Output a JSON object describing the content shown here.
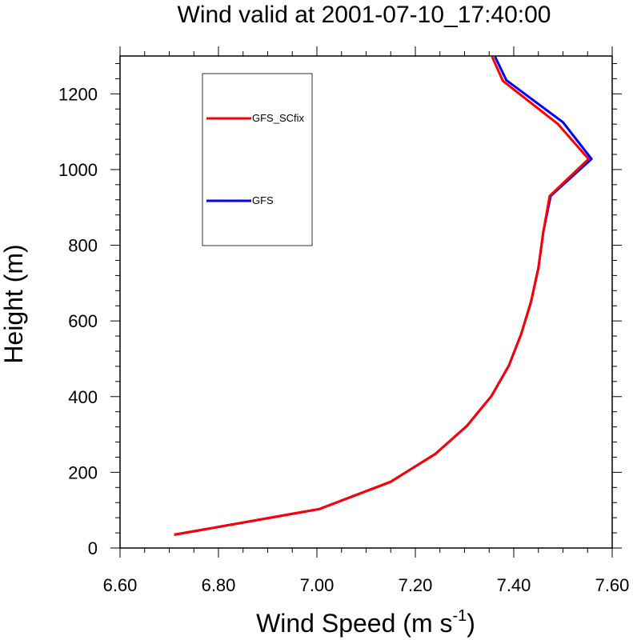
{
  "chart_data": {
    "type": "line",
    "title": "Wind valid at 2001-07-10_17:40:00",
    "xlabel_main": "Wind Speed (m s",
    "xlabel_sup": "-1",
    "xlabel_close": ")",
    "ylabel": "Height (m)",
    "xlim": [
      6.6,
      7.6
    ],
    "ylim": [
      0,
      1300
    ],
    "x_ticks": [
      6.6,
      6.8,
      7.0,
      7.2,
      7.4,
      7.6
    ],
    "x_tick_labels": [
      "6.60",
      "6.80",
      "7.00",
      "7.20",
      "7.40",
      "7.60"
    ],
    "y_ticks": [
      0,
      200,
      400,
      600,
      800,
      1000,
      1200
    ],
    "y_tick_labels": [
      "0",
      "200",
      "400",
      "600",
      "800",
      "1000",
      "1200"
    ],
    "legend_placement": "top-left",
    "series": [
      {
        "name": "GFS",
        "color": "#0000ff",
        "points": [
          [
            6.71,
            35
          ],
          [
            7.005,
            103
          ],
          [
            7.15,
            175
          ],
          [
            7.24,
            248
          ],
          [
            7.305,
            323
          ],
          [
            7.355,
            402
          ],
          [
            7.39,
            482
          ],
          [
            7.415,
            565
          ],
          [
            7.435,
            650
          ],
          [
            7.45,
            740
          ],
          [
            7.46,
            835
          ],
          [
            7.475,
            930
          ],
          [
            7.558,
            1028
          ],
          [
            7.5,
            1125
          ],
          [
            7.385,
            1236
          ],
          [
            7.362,
            1298
          ]
        ]
      },
      {
        "name": "GFS_SCfix",
        "color": "#ff0000",
        "points": [
          [
            6.71,
            35
          ],
          [
            7.005,
            103
          ],
          [
            7.15,
            175
          ],
          [
            7.24,
            248
          ],
          [
            7.305,
            323
          ],
          [
            7.355,
            402
          ],
          [
            7.39,
            482
          ],
          [
            7.415,
            565
          ],
          [
            7.435,
            650
          ],
          [
            7.45,
            740
          ],
          [
            7.46,
            835
          ],
          [
            7.473,
            930
          ],
          [
            7.552,
            1028
          ],
          [
            7.49,
            1120
          ],
          [
            7.378,
            1234
          ],
          [
            7.356,
            1298
          ]
        ]
      }
    ],
    "legend_order": [
      "GFS_SCfix",
      "GFS"
    ]
  }
}
